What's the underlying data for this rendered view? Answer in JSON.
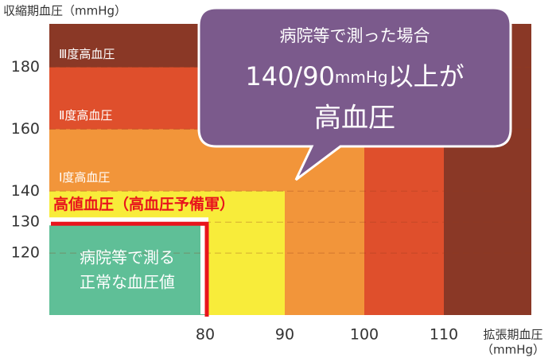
{
  "chart_data": {
    "type": "region",
    "ytitle": "収縮期血圧（mmHg）",
    "xtitle": [
      "拡張期血圧",
      "（mmHg）"
    ],
    "xlim": [
      60.4,
      121
    ],
    "ylim": [
      100,
      194
    ],
    "xticks": [
      80,
      90,
      100,
      110
    ],
    "yticks": [
      180,
      160,
      140,
      130,
      120
    ],
    "grid": true,
    "background": {
      "name": "Ⅲ度高血圧",
      "color": "#8a3826"
    },
    "regions": [
      {
        "name": "Ⅱ度高血圧",
        "x": 110,
        "y": 180,
        "color": "#df4f2c"
      },
      {
        "name": "Ⅰ度高血圧",
        "x": 100,
        "y": 160,
        "color": "#f2953a"
      },
      {
        "name": "高値血圧（高血圧予備軍）",
        "x": 90,
        "y": 140,
        "color": "#f8ec3a"
      },
      {
        "name": [
          "病院等で測る",
          "正常な血圧値"
        ],
        "x": 80,
        "y": 130,
        "color": "#5fbf97"
      }
    ],
    "callout": {
      "line1": "病院等で測った場合",
      "line2": [
        "140/90",
        "mmHg",
        "以上が"
      ],
      "line3": "高血圧",
      "color": "#7b5a8c"
    }
  }
}
